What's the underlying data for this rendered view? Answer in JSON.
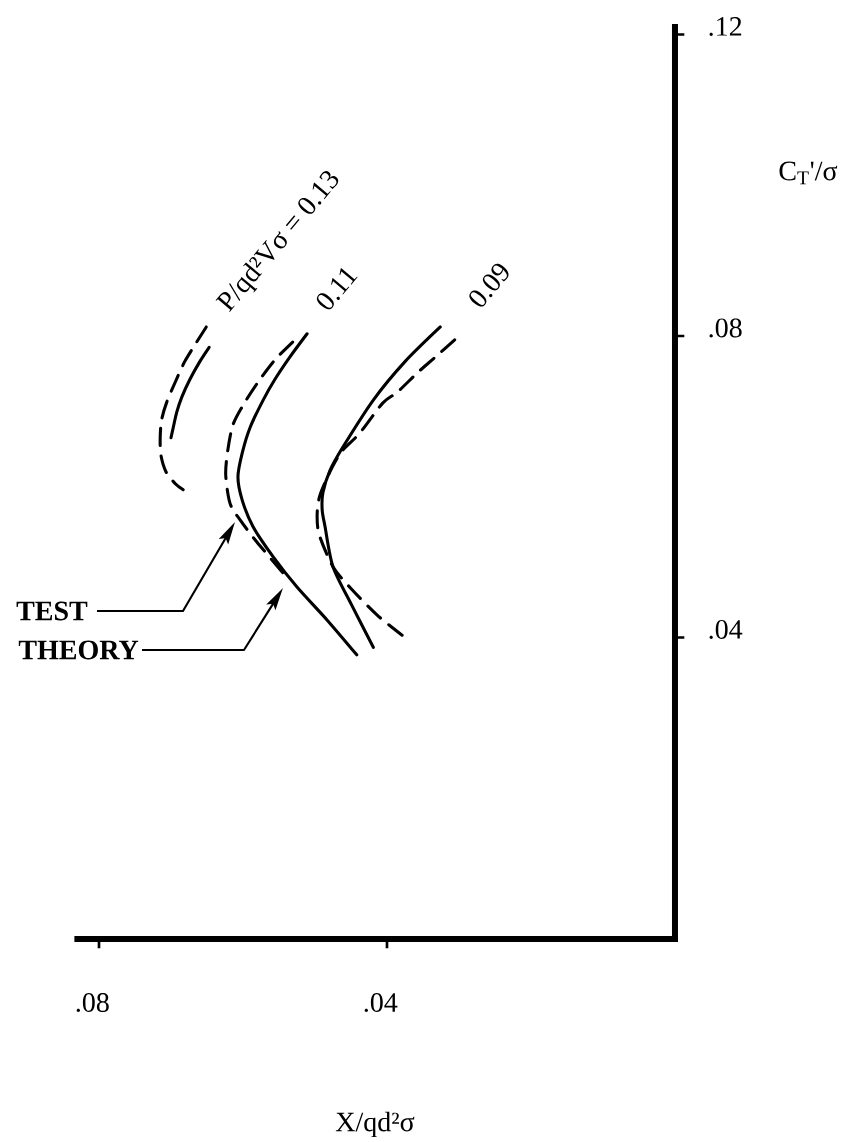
{
  "chart_data": {
    "type": "line",
    "xlabel": "X/qd²σ",
    "ylabel": "C$_{T}$'/σ",
    "xlim": [
      0.083,
      0
    ],
    "ylim": [
      0,
      0.121
    ],
    "xticks": [
      {
        "value": 0.08,
        "label": ".08"
      },
      {
        "value": 0.04,
        "label": ".04"
      }
    ],
    "yticks": [
      {
        "value": 0.04,
        "label": ".04"
      },
      {
        "value": 0.08,
        "label": ".08"
      },
      {
        "value": 0.12,
        "label": ".12"
      }
    ],
    "series": [
      {
        "color": "#000000",
        "line_style": "dashed",
        "x": [
          0.0651,
          0.0665,
          0.0681,
          0.0694,
          0.0706,
          0.0713,
          0.0715,
          0.0714,
          0.0707,
          0.0694,
          0.0683
        ],
        "values": [
          0.0812,
          0.0791,
          0.0766,
          0.0739,
          0.0712,
          0.0689,
          0.0665,
          0.0642,
          0.062,
          0.0604,
          0.0596
        ]
      },
      {
        "color": "#000000",
        "line_style": "solid",
        "x": [
          0.0647,
          0.066,
          0.0674,
          0.0685,
          0.0692,
          0.0697,
          0.07
        ],
        "values": [
          0.0785,
          0.0766,
          0.0742,
          0.0719,
          0.0699,
          0.0678,
          0.0665
        ]
      },
      {
        "color": "#000000",
        "line_style": "dashed",
        "x": [
          0.0531,
          0.0556,
          0.0579,
          0.06,
          0.0614,
          0.0621,
          0.0624,
          0.0618,
          0.0604,
          0.0581,
          0.0542
        ],
        "values": [
          0.0792,
          0.0768,
          0.0739,
          0.0708,
          0.0682,
          0.0649,
          0.0616,
          0.0578,
          0.0556,
          0.0527,
          0.0483
        ]
      },
      {
        "color": "#000000",
        "line_style": "solid",
        "x": [
          0.0511,
          0.0535,
          0.0556,
          0.0572,
          0.059,
          0.0601,
          0.0607,
          0.0601,
          0.0586,
          0.0558,
          0.0525,
          0.0483,
          0.0442
        ],
        "values": [
          0.0803,
          0.0772,
          0.0742,
          0.0715,
          0.0679,
          0.0645,
          0.0613,
          0.0582,
          0.0547,
          0.0507,
          0.0467,
          0.0423,
          0.0377
        ]
      },
      {
        "color": "#000000",
        "line_style": "dashed",
        "x": [
          0.0306,
          0.0333,
          0.0358,
          0.0385,
          0.0406,
          0.0438,
          0.0461,
          0.0476,
          0.0493,
          0.0497,
          0.0494,
          0.0475,
          0.0451,
          0.0414,
          0.0379
        ],
        "values": [
          0.0795,
          0.0772,
          0.0751,
          0.0726,
          0.0711,
          0.0671,
          0.0649,
          0.0626,
          0.0589,
          0.0563,
          0.0536,
          0.0494,
          0.0466,
          0.043,
          0.0403
        ]
      },
      {
        "color": "#000000",
        "line_style": "solid",
        "x": [
          0.0326,
          0.0375,
          0.0419,
          0.0461,
          0.0479,
          0.0489,
          0.049,
          0.0486,
          0.0475,
          0.0449,
          0.0419
        ],
        "values": [
          0.0812,
          0.0766,
          0.0715,
          0.0653,
          0.0622,
          0.0592,
          0.0569,
          0.0547,
          0.0494,
          0.0443,
          0.0387
        ]
      }
    ],
    "annotations": [
      {
        "text": "P/qd²Vσ = 0.13",
        "x": 0.0651,
        "y": 0.0812
      },
      {
        "text": "0.11",
        "x": 0.0511,
        "y": 0.0803
      },
      {
        "text": "0.09",
        "x": 0.0326,
        "y": 0.0812
      },
      "TEST",
      "THEORY"
    ]
  }
}
